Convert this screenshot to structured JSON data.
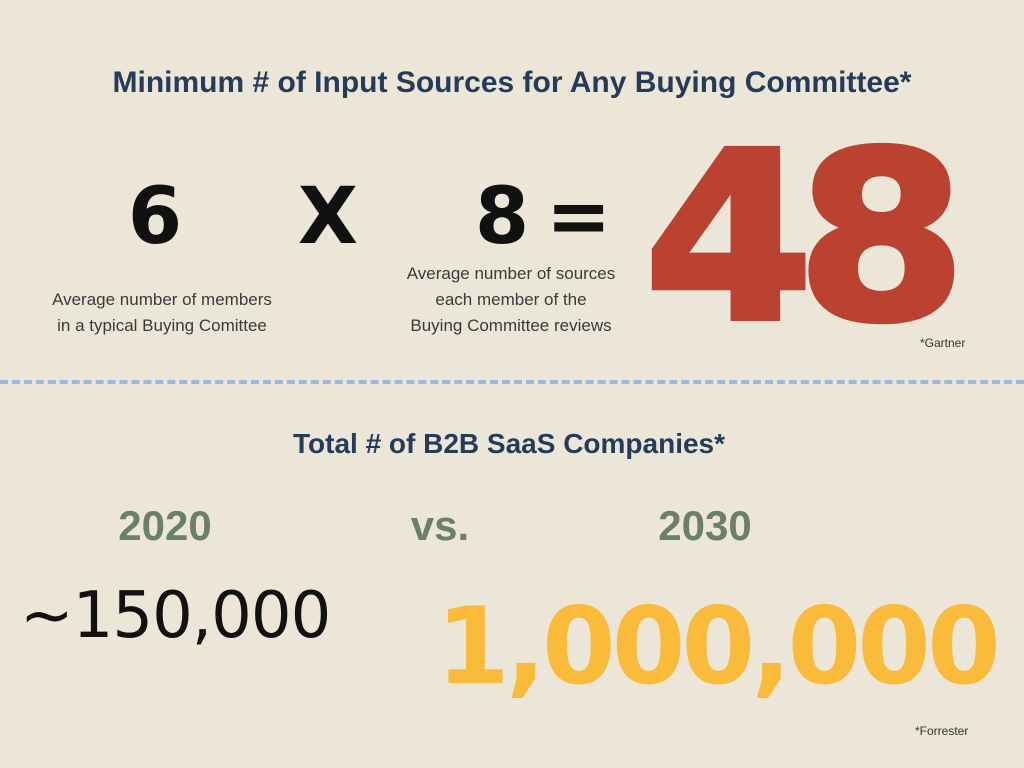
{
  "section1": {
    "title": "Minimum # of Input Sources for Any Buying Committee*",
    "factor_a": "6",
    "operator_times": "X",
    "factor_b": "8",
    "operator_equals": "=",
    "result": "48",
    "caption_a": "Average number of members\nin a typical Buying Comittee",
    "caption_b": "Average number of sources\neach member of the\nBuying Committee reviews",
    "source": "*Gartner"
  },
  "section2": {
    "title": "Total # of B2B SaaS Companies*",
    "year_a": "2020",
    "vs": "vs.",
    "year_b": "2030",
    "count_a": "~150,000",
    "count_b": "1,000,000",
    "source": "*Forrester"
  },
  "colors": {
    "background": "#ebe6d8",
    "title": "#243c5a",
    "result": "#bb4231",
    "year": "#6a7f6c",
    "count_b": "#fbbb3a",
    "divider": "#9fb7d8"
  }
}
